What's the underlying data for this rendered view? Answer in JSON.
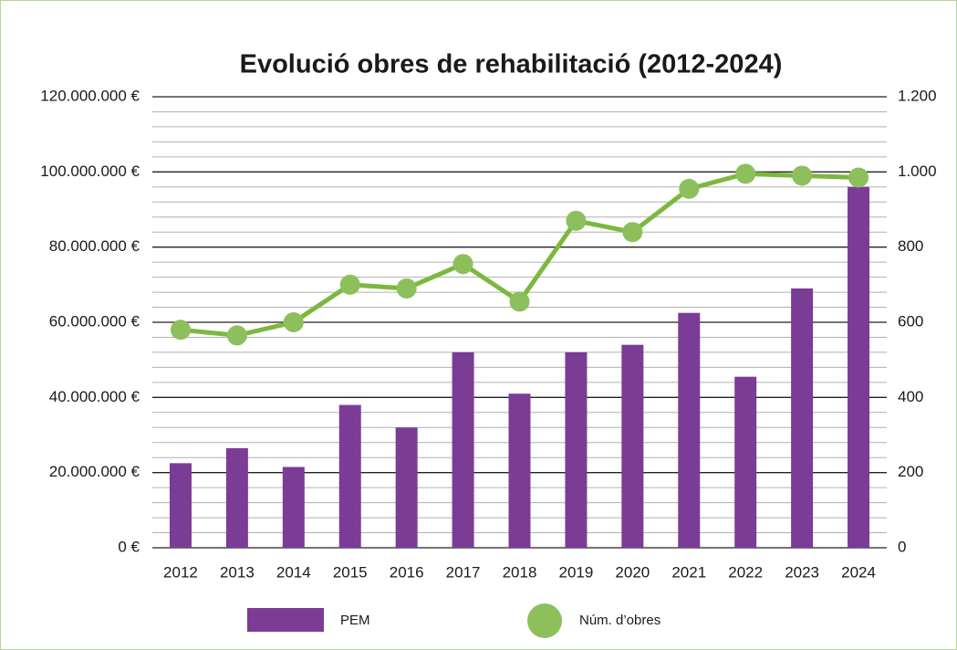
{
  "chart_data": {
    "type": "bar",
    "title": "Evolució obres de rehabilitació (2012-2024)",
    "categories": [
      "2012",
      "2013",
      "2014",
      "2015",
      "2016",
      "2017",
      "2018",
      "2019",
      "2020",
      "2021",
      "2022",
      "2023",
      "2024"
    ],
    "series": [
      {
        "name": "PEM",
        "type": "bar",
        "axis": "y",
        "color": "#7b3c96",
        "values": [
          22500000,
          26500000,
          21500000,
          38000000,
          32000000,
          52000000,
          41000000,
          52000000,
          54000000,
          62500000,
          45500000,
          69000000,
          96000000
        ]
      },
      {
        "name": "Núm. d’obres",
        "type": "line",
        "axis": "y2",
        "color": "#8dc05c",
        "values": [
          580,
          565,
          600,
          700,
          690,
          755,
          655,
          870,
          840,
          955,
          995,
          990,
          985
        ]
      }
    ],
    "ylim": [
      0,
      120000000
    ],
    "yticks": [
      {
        "value": 0,
        "label": "0 €"
      },
      {
        "value": 20000000,
        "label": "20.000.000 €"
      },
      {
        "value": 40000000,
        "label": "40.000.000 €"
      },
      {
        "value": 60000000,
        "label": "60.000.000 €"
      },
      {
        "value": 80000000,
        "label": "80.000.000 €"
      },
      {
        "value": 100000000,
        "label": "100.000.000 €"
      },
      {
        "value": 120000000,
        "label": "120.000.000 €"
      }
    ],
    "y2lim": [
      0,
      1200
    ],
    "y2ticks": [
      0,
      200,
      400,
      600,
      800,
      {
        "value": 1000,
        "label": "1.000"
      },
      {
        "value": 1200,
        "label": "1.200"
      }
    ],
    "grid": true,
    "minor_grid_per_major": 5,
    "legend": "bottom"
  }
}
